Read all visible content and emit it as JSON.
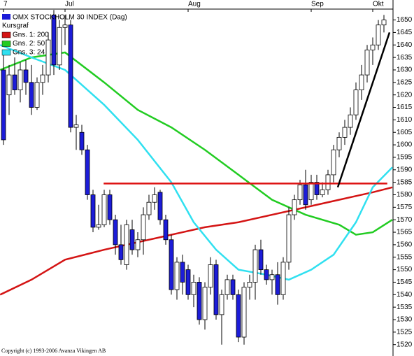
{
  "chart_data": {
    "type": "candlestick",
    "title": "OMX STOCKHOLM 30 INDEX (Dag)",
    "subtitle": "Kursgraf",
    "copyright": "Copyright (c) 1993-2006 Avanza Vikingen AB",
    "up_color": "#ffffff",
    "down_color": "#1c1cd8",
    "xlim": [
      -0.625,
      69.625
    ],
    "xticks": [
      {
        "value": 0,
        "label": "7"
      },
      {
        "value": 11,
        "label": "Jul"
      },
      {
        "value": 33,
        "label": "Aug"
      },
      {
        "value": 55,
        "label": "Sep"
      },
      {
        "value": 66,
        "label": "Okt"
      }
    ],
    "ylim": [
      1516,
      1658
    ],
    "yticks": [
      1520,
      1525,
      1530,
      1535,
      1540,
      1545,
      1550,
      1555,
      1560,
      1565,
      1570,
      1575,
      1580,
      1585,
      1590,
      1595,
      1600,
      1605,
      1610,
      1615,
      1620,
      1625,
      1630,
      1635,
      1640,
      1645,
      1650
    ],
    "open": [
      1630,
      1620,
      1628,
      1622,
      1630,
      1625,
      1615,
      1625,
      1628,
      1652,
      1632,
      1647,
      1648,
      1607,
      1605,
      1598,
      1580,
      1567,
      1568,
      1580,
      1570,
      1560,
      1552,
      1566,
      1558,
      1562,
      1572,
      1577,
      1581,
      1570,
      1562,
      1542,
      1553,
      1550,
      1540,
      1545,
      1530,
      1543,
      1552,
      1532,
      1540,
      1546,
      1540,
      1523,
      1543,
      1545,
      1558,
      1550,
      1546,
      1548,
      1540,
      1553,
      1572,
      1578,
      1584,
      1578,
      1585,
      1580,
      1582,
      1588,
      1598,
      1603,
      1607,
      1612,
      1622,
      1628,
      1638,
      1640,
      1648
    ],
    "high": [
      1636,
      1632,
      1635,
      1633,
      1634,
      1632,
      1627,
      1632,
      1645,
      1654,
      1650,
      1652,
      1650,
      1612,
      1608,
      1600,
      1582,
      1576,
      1582,
      1582,
      1572,
      1568,
      1570,
      1570,
      1565,
      1575,
      1580,
      1583,
      1582,
      1572,
      1564,
      1555,
      1556,
      1552,
      1548,
      1547,
      1545,
      1555,
      1554,
      1542,
      1548,
      1548,
      1542,
      1545,
      1548,
      1560,
      1562,
      1552,
      1550,
      1553,
      1555,
      1575,
      1580,
      1586,
      1590,
      1588,
      1588,
      1585,
      1590,
      1600,
      1605,
      1610,
      1615,
      1625,
      1632,
      1640,
      1643,
      1650,
      1652
    ],
    "low": [
      1600,
      1612,
      1620,
      1617,
      1620,
      1612,
      1614,
      1620,
      1625,
      1628,
      1630,
      1640,
      1605,
      1598,
      1596,
      1578,
      1565,
      1566,
      1567,
      1568,
      1556,
      1552,
      1550,
      1556,
      1555,
      1556,
      1570,
      1574,
      1568,
      1560,
      1540,
      1538,
      1540,
      1538,
      1535,
      1528,
      1526,
      1540,
      1530,
      1520,
      1538,
      1538,
      1521,
      1520,
      1538,
      1538,
      1548,
      1544,
      1540,
      1536,
      1538,
      1550,
      1570,
      1576,
      1574,
      1576,
      1578,
      1579,
      1580,
      1585,
      1595,
      1600,
      1604,
      1610,
      1618,
      1625,
      1632,
      1638,
      1645
    ],
    "close": [
      1602,
      1628,
      1622,
      1630,
      1625,
      1615,
      1625,
      1628,
      1642,
      1632,
      1647,
      1648,
      1607,
      1608,
      1598,
      1580,
      1567,
      1568,
      1580,
      1570,
      1560,
      1554,
      1568,
      1558,
      1562,
      1572,
      1577,
      1580,
      1570,
      1562,
      1542,
      1553,
      1545,
      1540,
      1545,
      1530,
      1543,
      1552,
      1532,
      1540,
      1546,
      1540,
      1523,
      1543,
      1545,
      1558,
      1550,
      1546,
      1548,
      1540,
      1553,
      1572,
      1578,
      1584,
      1576,
      1585,
      1580,
      1582,
      1588,
      1598,
      1603,
      1607,
      1612,
      1622,
      1628,
      1638,
      1640,
      1648,
      1650
    ],
    "series": [
      {
        "name": "Gns. 1: 200",
        "color": "#d41414",
        "x": [
          -0.6,
          5,
          11,
          18,
          24,
          30,
          36,
          42,
          48,
          54,
          60,
          66,
          69.5
        ],
        "values": [
          1540,
          1546,
          1554,
          1558,
          1561,
          1564,
          1567,
          1569,
          1572,
          1575,
          1578,
          1581,
          1583
        ]
      },
      {
        "name": "Gns. 2: 50",
        "color": "#22cc22",
        "x": [
          -0.6,
          5,
          11,
          18,
          24,
          30,
          36,
          42,
          48,
          54,
          60,
          63,
          66,
          69.5
        ],
        "values": [
          1630,
          1635,
          1637,
          1625,
          1614,
          1607,
          1598,
          1588,
          1578,
          1572,
          1568,
          1564,
          1565,
          1570
        ]
      },
      {
        "name": "Gns. 3: 24",
        "color": "#30e0f0",
        "x": [
          -0.6,
          5,
          11,
          18,
          24,
          30,
          34,
          38,
          42,
          47,
          51,
          55,
          59,
          63,
          66,
          69.5
        ],
        "values": [
          1640,
          1635,
          1630,
          1616,
          1602,
          1585,
          1569,
          1558,
          1550,
          1548,
          1546,
          1550,
          1556,
          1569,
          1583,
          1591
        ]
      }
    ],
    "lines": [
      {
        "color": "#dd1111",
        "x": [
          17.9,
          68.6
        ],
        "values": [
          1584.5,
          1584.5
        ]
      },
      {
        "color": "#000000",
        "x": [
          59.75,
          69
        ],
        "values": [
          1583,
          1645
        ]
      }
    ]
  }
}
